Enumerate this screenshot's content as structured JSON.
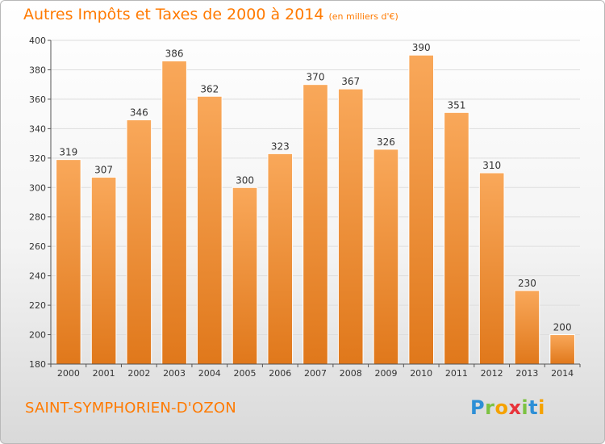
{
  "header": {
    "title": "Autres Impôts et Taxes de 2000 à 2014",
    "subtitle": "(en milliers d'€)"
  },
  "footer": {
    "place": "SAINT-SYMPHORIEN-D'OZON",
    "logo_letters": [
      "P",
      "r",
      "o",
      "x",
      "i",
      "t",
      "i"
    ]
  },
  "colors": {
    "bar_top": "#f9a85a",
    "bar_bottom": "#e0781b",
    "accent": "#ff7a00"
  },
  "chart_data": {
    "type": "bar",
    "categories": [
      "2000",
      "2001",
      "2002",
      "2003",
      "2004",
      "2005",
      "2006",
      "2007",
      "2008",
      "2009",
      "2010",
      "2011",
      "2012",
      "2013",
      "2014"
    ],
    "values": [
      319,
      307,
      346,
      386,
      362,
      300,
      323,
      370,
      367,
      326,
      390,
      351,
      310,
      230,
      200
    ],
    "ylim": [
      180,
      400
    ],
    "yticks": [
      180,
      200,
      220,
      240,
      260,
      280,
      300,
      320,
      340,
      360,
      380,
      400
    ],
    "grid": true,
    "legend": "none"
  }
}
